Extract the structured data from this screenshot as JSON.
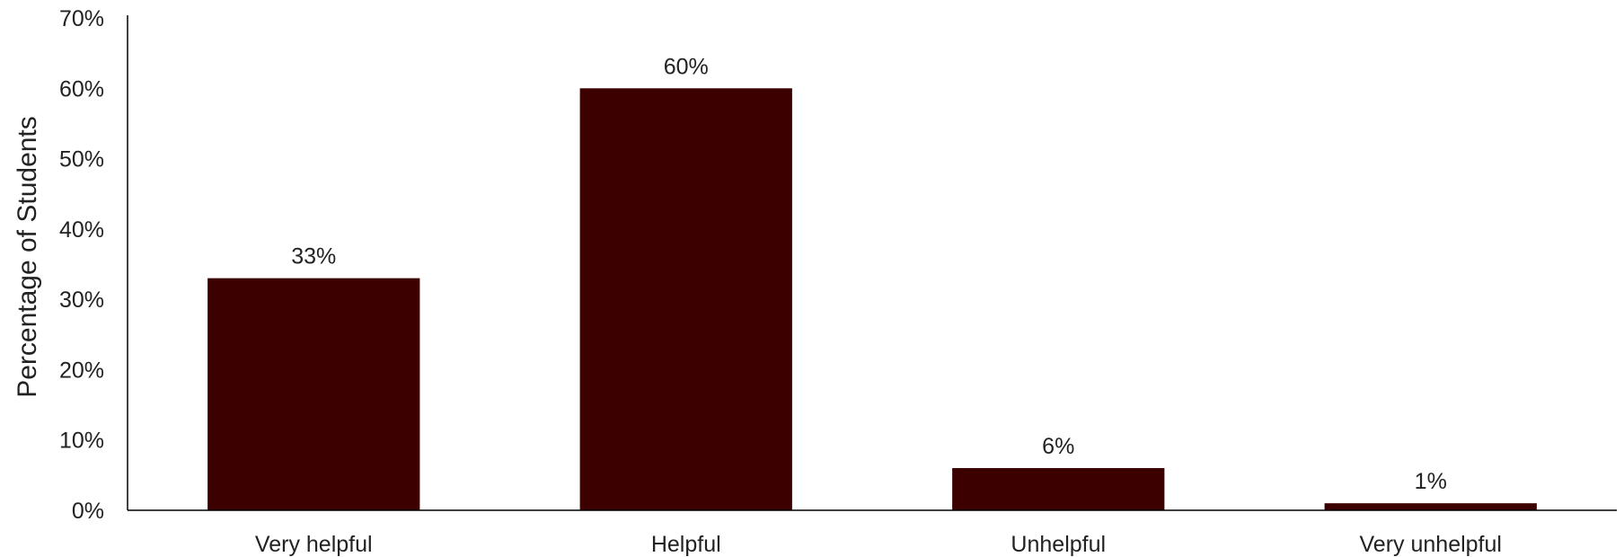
{
  "chart_data": {
    "type": "bar",
    "categories": [
      "Very helpful",
      "Helpful",
      "Unhelpful",
      "Very unhelpful"
    ],
    "values": [
      33,
      60,
      6,
      1
    ],
    "data_labels": [
      "33%",
      "60%",
      "6%",
      "1%"
    ],
    "title": "",
    "xlabel": "",
    "ylabel": "Percentage of Students",
    "ylim": [
      0,
      70
    ],
    "yticks": [
      0,
      10,
      20,
      30,
      40,
      50,
      60,
      70
    ],
    "ytick_labels": [
      "0%",
      "10%",
      "20%",
      "30%",
      "40%",
      "50%",
      "60%",
      "70%"
    ],
    "grid": false,
    "legend": "none",
    "bar_color": "#3d0000",
    "axis_color": "#000000"
  }
}
